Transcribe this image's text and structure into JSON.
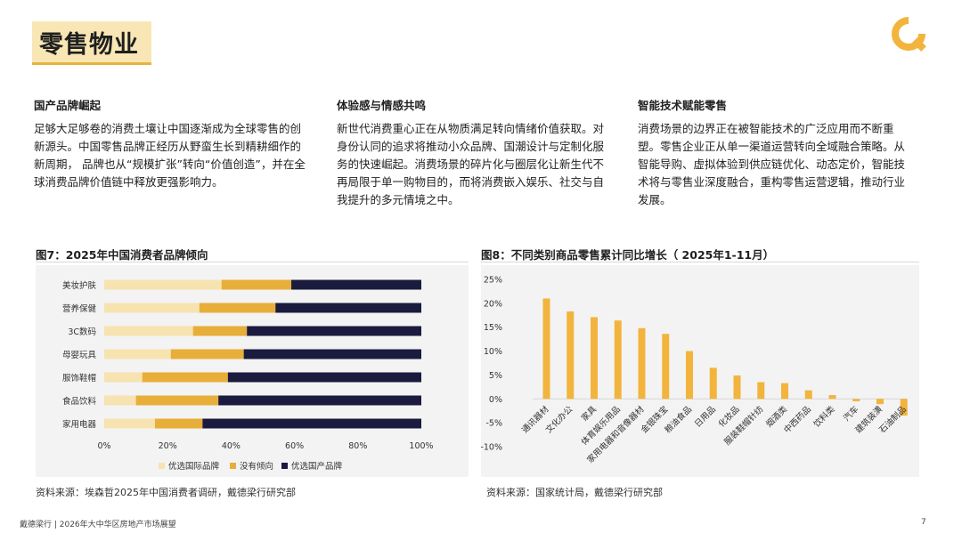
{
  "header": {
    "title": "零售物业"
  },
  "columns": [
    {
      "heading": "国产品牌崛起",
      "body": "足够大足够卷的消费土壤让中国逐渐成为全球零售的创新源头。中国零售品牌正经历从野蛮生长到精耕细作的新周期， 品牌也从“规模扩张”转向“价值创造”，并在全球消费品牌价值链中释放更强影响力。"
    },
    {
      "heading": "体验感与情感共鸣",
      "body": "新世代消费重心正在从物质满足转向情绪价值获取。对身份认同的追求将推动小众品牌、国潮设计与定制化服务的快速崛起。消费场景的碎片化与圈层化让新生代不再局限于单一购物目的，而将消费嵌入娱乐、社交与自我提升的多元情境之中。"
    },
    {
      "heading": "智能技术赋能零售",
      "body": "消费场景的边界正在被智能技术的广泛应用而不断重塑。零售企业正从单一渠道运营转向全域融合策略。从智能导购、虚拟体验到供应链优化、动态定价，智能技术将与零售业深度融合，重构零售运营逻辑，推动行业发展。"
    }
  ],
  "colors": {
    "light": "#f7e3b0",
    "mid": "#e8ae3a",
    "dark": "#1b1b40",
    "bar": "#f2b43c",
    "accent": "#e8b33d"
  },
  "chart_data": [
    {
      "type": "bar",
      "orientation": "horizontal",
      "stacked": true,
      "title": "图7：2025年中国消费者品牌倾向",
      "categories": [
        "美妆护肤",
        "营养保健",
        "3C数码",
        "母婴玩具",
        "服饰鞋帽",
        "食品饮料",
        "家用电器"
      ],
      "series": [
        {
          "name": "优选国际品牌",
          "values": [
            37,
            30,
            28,
            21,
            12,
            10,
            16
          ]
        },
        {
          "name": "没有倾向",
          "values": [
            22,
            24,
            17,
            23,
            27,
            26,
            15
          ]
        },
        {
          "name": "优选国产品牌",
          "values": [
            41,
            46,
            55,
            56,
            61,
            64,
            69
          ]
        }
      ],
      "xlim": [
        0,
        100
      ],
      "x_ticks": [
        "0%",
        "20%",
        "40%",
        "60%",
        "80%",
        "100%"
      ],
      "legend": "bottom",
      "grid": false,
      "source": "资料来源：埃森哲2025年中国消费者调研，戴德梁行研究部"
    },
    {
      "type": "bar",
      "title": "图8：不同类别商品零售累计同比增长（ 2025年1-11月）",
      "categories": [
        "通讯器材",
        "文化办公",
        "家具",
        "体育娱乐用品",
        "家用电器和音像器材",
        "金银珠宝",
        "粮油食品",
        "日用品",
        "化妆品",
        "服装鞋帽针纺",
        "烟酒类",
        "中西药品",
        "饮料类",
        "汽车",
        "建筑装潢",
        "石油制品"
      ],
      "values": [
        21.0,
        18.3,
        17.1,
        16.4,
        14.8,
        13.6,
        10.0,
        6.5,
        4.9,
        3.5,
        3.3,
        1.8,
        0.8,
        -0.5,
        -1.1,
        -3.5
      ],
      "ylim": [
        -10,
        25
      ],
      "y_ticks": [
        "25%",
        "20%",
        "15%",
        "10%",
        "5%",
        "0%",
        "-5%",
        "-10%"
      ],
      "grid": false,
      "source": "资料来源：国家统计局，戴德梁行研究部"
    }
  ],
  "footer": {
    "text": "戴德梁行 | 2026年大中华区房地产市场展望",
    "page": "7"
  }
}
